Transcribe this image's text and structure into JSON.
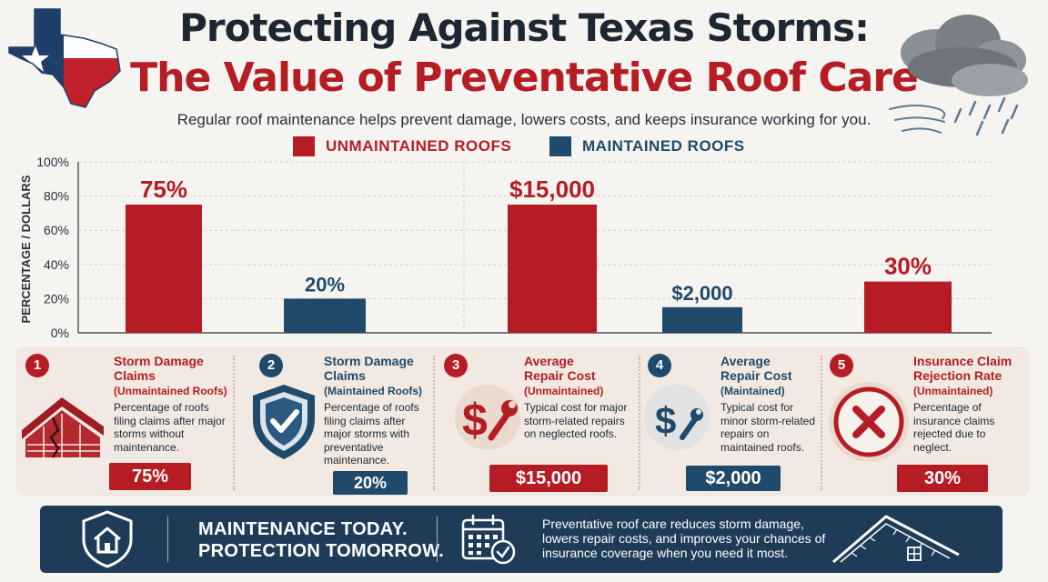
{
  "header": {
    "title_line1": "Protecting Against Texas Storms:",
    "title_line2": "The Value of Preventative Roof Care",
    "subtitle": "Regular roof maintenance helps prevent damage, lowers costs, and keeps insurance working for you."
  },
  "colors": {
    "unmaintained": "#b51c24",
    "maintained": "#1f4a6b",
    "navy": "#1e3c58"
  },
  "legend": {
    "unmaintained": "UNMAINTAINED ROOFS",
    "maintained": "MAINTAINED ROOFS"
  },
  "chart_data": {
    "type": "bar",
    "ylabel": "PERCENTAGE / DOLLARS",
    "yticks": [
      "0%",
      "20%",
      "40%",
      "60%",
      "80%",
      "100%"
    ],
    "ylim": [
      0,
      100
    ],
    "grid": true,
    "legend_position": "top-center",
    "bars": [
      {
        "series": "unmaintained",
        "value": 75,
        "label": "75%"
      },
      {
        "series": "maintained",
        "value": 20,
        "label": "20%"
      },
      {
        "series": "unmaintained",
        "value": 75,
        "label": "$15,000"
      },
      {
        "series": "maintained",
        "value": 15,
        "label": "$2,000"
      },
      {
        "series": "unmaintained",
        "value": 30,
        "label": "30%"
      }
    ]
  },
  "cards": [
    {
      "number": "1",
      "title": "Storm Damage Claims",
      "subtitle": "(Unmaintained Roofs)",
      "desc": "Percentage of roofs filing claims after major storms without maintenance.",
      "value": "75%",
      "icon": "damaged-roof-icon"
    },
    {
      "number": "2",
      "title": "Storm Damage Claims",
      "subtitle": "(Maintained Roofs)",
      "desc": "Percentage of roofs filing claims after major storms with preventative maintenance.",
      "value": "20%",
      "icon": "shield-check-icon"
    },
    {
      "number": "3",
      "title": "Average Repair Cost",
      "subtitle": "(Unmaintained)",
      "desc": "Typical cost for major storm-related repairs on neglected roofs.",
      "value": "$15,000",
      "icon": "dollar-wrench-icon"
    },
    {
      "number": "4",
      "title": "Average Repair Cost",
      "subtitle": "(Maintained)",
      "desc": "Typical cost for minor storm-related repairs on maintained roofs.",
      "value": "$2,000",
      "icon": "dollar-wrench-icon"
    },
    {
      "number": "5",
      "title": "Insurance Claim Rejection Rate",
      "subtitle": "(Unmaintained)",
      "desc": "Percentage of insurance claims rejected due to neglect.",
      "value": "30%",
      "icon": "x-circle-icon"
    }
  ],
  "banner": {
    "slogan_line1": "MAINTENANCE TODAY.",
    "slogan_line2": "PROTECTION TOMORROW.",
    "text": "Preventative roof care reduces storm damage, lowers repair costs, and improves your chances of insurance coverage when you need it most."
  }
}
